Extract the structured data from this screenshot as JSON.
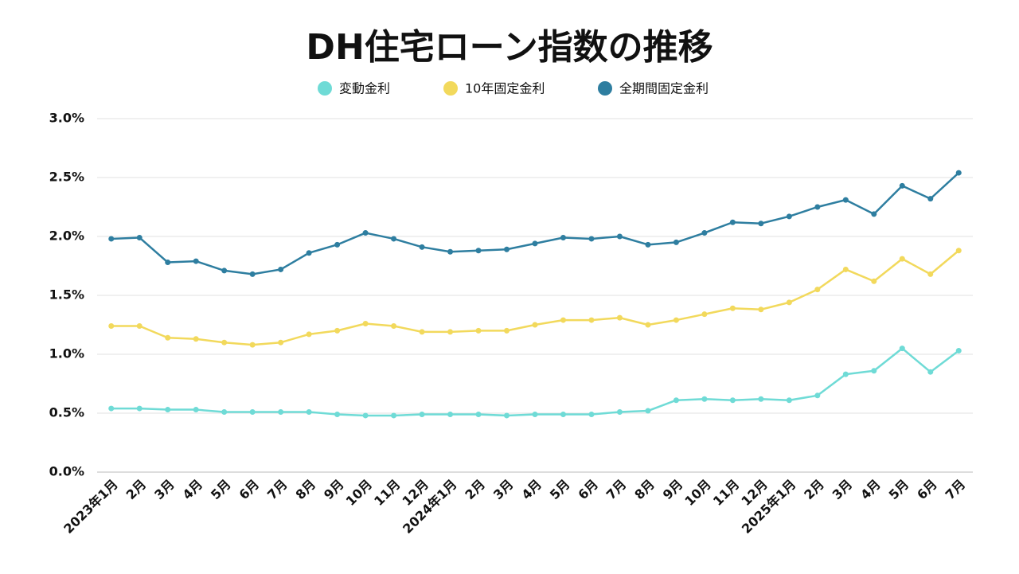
{
  "chart_data": {
    "type": "line",
    "title": "DH住宅ローン指数の推移",
    "categories": [
      "2023年1月",
      "2月",
      "3月",
      "4月",
      "5月",
      "6月",
      "7月",
      "8月",
      "9月",
      "10月",
      "11月",
      "12月",
      "2024年1月",
      "2月",
      "3月",
      "4月",
      "5月",
      "6月",
      "7月",
      "8月",
      "9月",
      "10月",
      "11月",
      "12月",
      "2025年1月",
      "2月",
      "3月",
      "4月",
      "5月",
      "6月",
      "7月"
    ],
    "series": [
      {
        "name": "変動金利",
        "color": "#6fdbd6",
        "values": [
          0.54,
          0.54,
          0.53,
          0.53,
          0.51,
          0.51,
          0.51,
          0.51,
          0.49,
          0.48,
          0.48,
          0.49,
          0.49,
          0.49,
          0.48,
          0.49,
          0.49,
          0.49,
          0.51,
          0.52,
          0.61,
          0.62,
          0.61,
          0.62,
          0.61,
          0.65,
          0.83,
          0.86,
          1.05,
          0.85,
          1.03
        ]
      },
      {
        "name": "10年固定金利",
        "color": "#f2d95c",
        "values": [
          1.24,
          1.24,
          1.14,
          1.13,
          1.1,
          1.08,
          1.1,
          1.17,
          1.2,
          1.26,
          1.24,
          1.19,
          1.19,
          1.2,
          1.2,
          1.25,
          1.29,
          1.29,
          1.31,
          1.25,
          1.29,
          1.34,
          1.39,
          1.38,
          1.44,
          1.55,
          1.72,
          1.62,
          1.81,
          1.68,
          1.88
        ]
      },
      {
        "name": "全期間固定金利",
        "color": "#2e7ea0",
        "values": [
          1.98,
          1.99,
          1.78,
          1.79,
          1.71,
          1.68,
          1.72,
          1.86,
          1.93,
          2.03,
          1.98,
          1.91,
          1.87,
          1.88,
          1.89,
          1.94,
          1.99,
          1.98,
          2.0,
          1.93,
          1.95,
          2.03,
          2.12,
          2.11,
          2.17,
          2.25,
          2.31,
          2.19,
          2.43,
          2.32,
          2.54
        ]
      }
    ],
    "ylim": [
      0,
      3
    ],
    "yticks": [
      {
        "value": 0,
        "label": "0.0%"
      },
      {
        "value": 0.5,
        "label": "0.5%"
      },
      {
        "value": 1,
        "label": "1.0%"
      },
      {
        "value": 1.5,
        "label": "1.5%"
      },
      {
        "value": 2,
        "label": "2.0%"
      },
      {
        "value": 2.5,
        "label": "2.5%"
      },
      {
        "value": 3,
        "label": "3.0%"
      }
    ],
    "grid": true
  }
}
